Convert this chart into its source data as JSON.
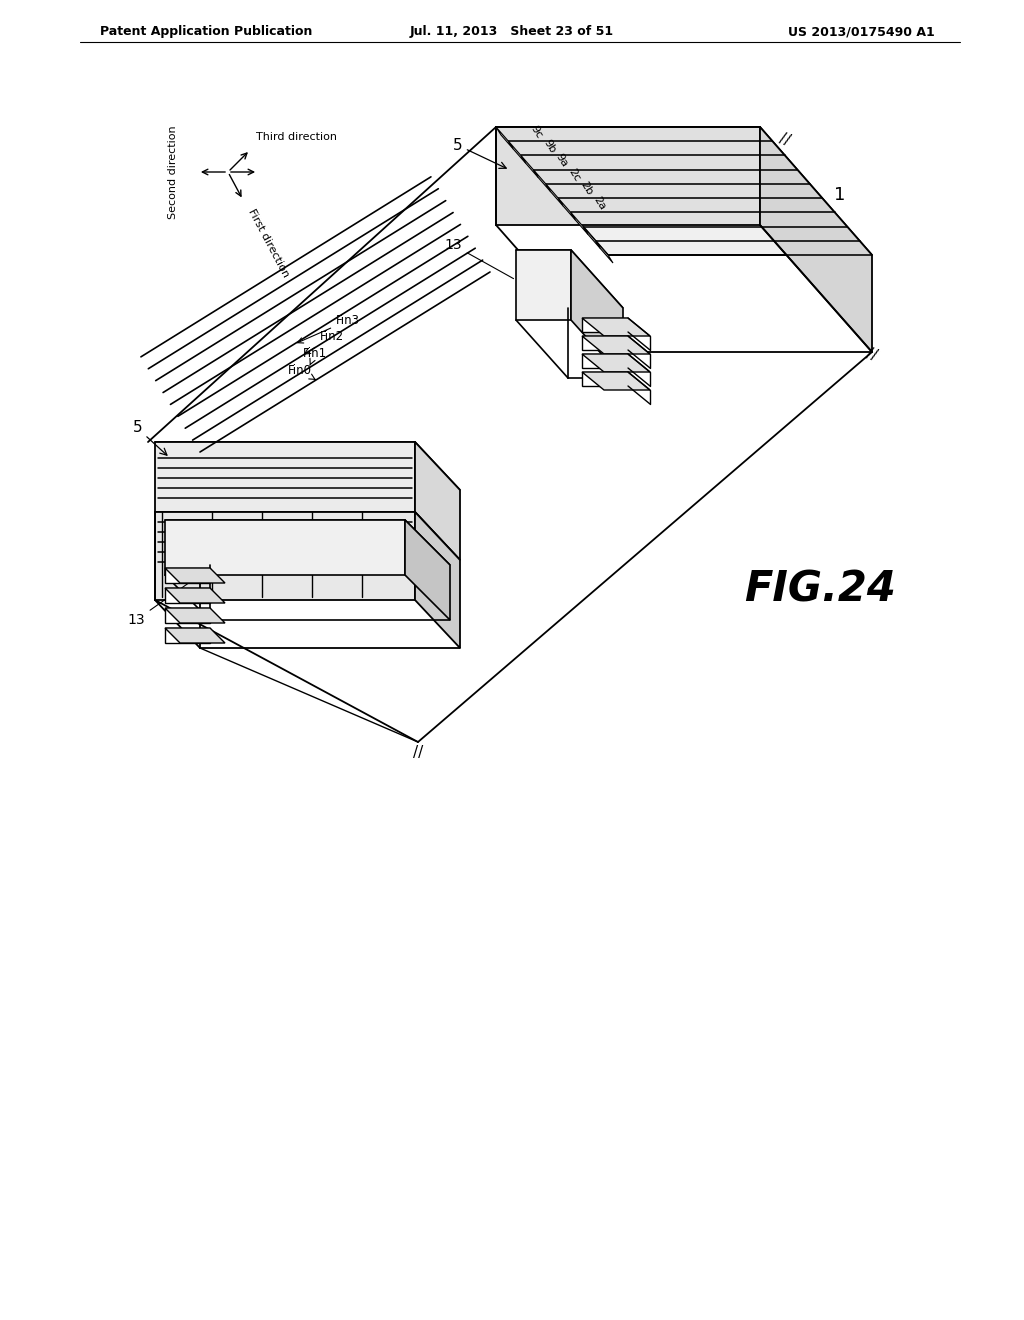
{
  "header_left": "Patent Application Publication",
  "header_mid": "Jul. 11, 2013   Sheet 23 of 51",
  "header_right": "US 2013/0175490 A1",
  "fig_label": "FIG.24",
  "bg_color": "#ffffff"
}
